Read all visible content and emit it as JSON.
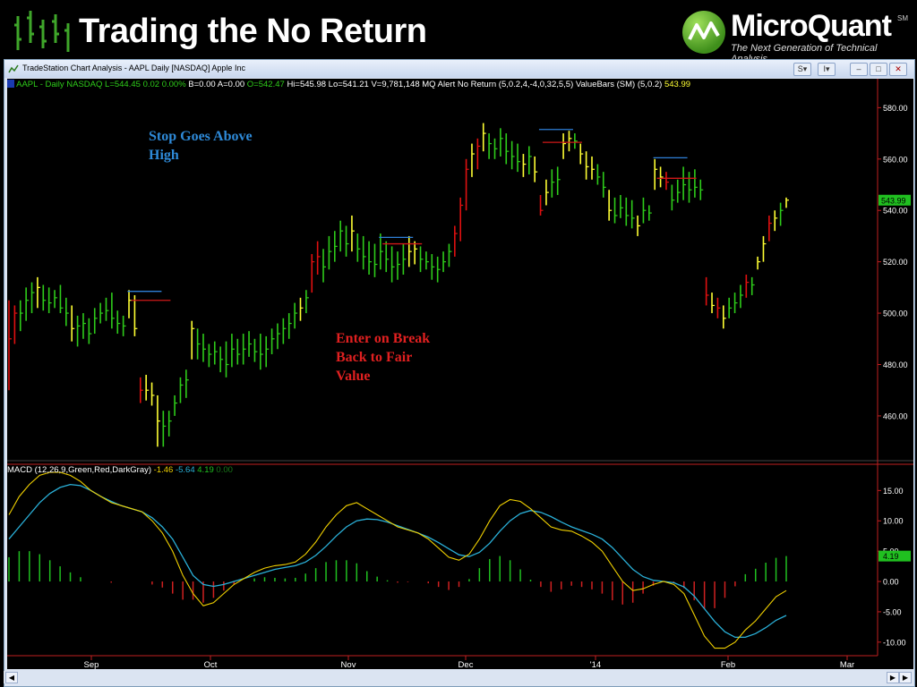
{
  "slide": {
    "title": "Trading the No Return"
  },
  "logo": {
    "brand_a": "Micro",
    "brand_b": "Quant",
    "sm": "SM",
    "tagline": "The Next Generation of Technical Analysis"
  },
  "window": {
    "title": "TradeStation Chart Analysis - AAPL Daily [NASDAQ] Apple Inc",
    "btn_s": "S",
    "btn_i": "I"
  },
  "status": {
    "symbol": "AAPL - Daily  NASDAQ",
    "last": "L=544.45",
    "change": "0.02",
    "pct": "0.00%",
    "bid": "B=0.00",
    "ask": "A=0.00",
    "open": "O=542.47",
    "hi": "Hi=545.98",
    "lo": "Lo=541.21",
    "vol": "V=9,781,148",
    "study1": "MQ Alert No Return (5,0.2,4,-4,0,32,5,5)",
    "study2": "ValueBars (SM) (5,0.2)",
    "study2_val": "543.99"
  },
  "macd_status": {
    "label": "MACD (12,26,9,Green,Red,DarkGray)",
    "v1": "-1.46",
    "v2": "-5.64",
    "v3": "4.19",
    "v4": "0.00"
  },
  "annotations": {
    "stop_line1": "Stop Goes Above",
    "stop_line2": "High",
    "enter_line1": "Enter on Break",
    "enter_line2": "Back to Fair",
    "enter_line3": "Value"
  },
  "colors": {
    "up_bar": "#2ecc1a",
    "down_bar": "#ffff33",
    "extreme_bar": "#e01010",
    "stop_line": "#2e7fd8",
    "entry_line": "#d01818",
    "macd_line": "#f0d000",
    "signal_line": "#2ab0d8",
    "hist_pos": "#20c020",
    "hist_neg": "#d02020",
    "annot_blue": "#2e8ad8",
    "annot_red": "#e02020"
  },
  "chart_data": [
    {
      "type": "bar",
      "name": "AAPL Daily OHLC (price)",
      "ylim": [
        445,
        585
      ],
      "yticks": [
        "580.00",
        "560.00",
        "540.00",
        "520.00",
        "500.00",
        "480.00",
        "460.00"
      ],
      "ytick_values": [
        580,
        560,
        540,
        520,
        500,
        480,
        460
      ],
      "last_price_label": "543.99",
      "last_price": 543.99,
      "xticks": [
        "Sep",
        "Oct",
        "Nov",
        "Dec",
        "'14",
        "Feb",
        "Mar"
      ],
      "bars": [
        {
          "h": 505,
          "l": 470,
          "c": 490,
          "k": "r"
        },
        {
          "h": 503,
          "l": 488,
          "c": 500,
          "k": "r"
        },
        {
          "h": 505,
          "l": 493,
          "c": 500,
          "k": "g"
        },
        {
          "h": 510,
          "l": 497,
          "c": 505,
          "k": "g"
        },
        {
          "h": 512,
          "l": 500,
          "c": 508,
          "k": "g"
        },
        {
          "h": 514,
          "l": 502,
          "c": 510,
          "k": "y"
        },
        {
          "h": 511,
          "l": 501,
          "c": 505,
          "k": "g"
        },
        {
          "h": 510,
          "l": 500,
          "c": 504,
          "k": "g"
        },
        {
          "h": 509,
          "l": 502,
          "c": 506,
          "k": "g"
        },
        {
          "h": 511,
          "l": 500,
          "c": 502,
          "k": "g"
        },
        {
          "h": 506,
          "l": 495,
          "c": 500,
          "k": "g"
        },
        {
          "h": 503,
          "l": 489,
          "c": 494,
          "k": "y"
        },
        {
          "h": 499,
          "l": 487,
          "c": 495,
          "k": "g"
        },
        {
          "h": 500,
          "l": 490,
          "c": 496,
          "k": "g"
        },
        {
          "h": 498,
          "l": 488,
          "c": 492,
          "k": "g"
        },
        {
          "h": 502,
          "l": 492,
          "c": 498,
          "k": "g"
        },
        {
          "h": 504,
          "l": 496,
          "c": 500,
          "k": "g"
        },
        {
          "h": 506,
          "l": 497,
          "c": 501,
          "k": "g"
        },
        {
          "h": 508,
          "l": 494,
          "c": 498,
          "k": "g"
        },
        {
          "h": 501,
          "l": 492,
          "c": 496,
          "k": "g"
        },
        {
          "h": 499,
          "l": 491,
          "c": 495,
          "k": "g"
        },
        {
          "h": 509,
          "l": 498,
          "c": 505,
          "k": "y"
        },
        {
          "h": 507,
          "l": 491,
          "c": 494,
          "k": "y"
        },
        {
          "h": 475,
          "l": 465,
          "c": 470,
          "k": "r"
        },
        {
          "h": 476,
          "l": 466,
          "c": 470,
          "k": "y"
        },
        {
          "h": 473,
          "l": 464,
          "c": 468,
          "k": "y"
        },
        {
          "h": 468,
          "l": 448,
          "c": 458,
          "k": "y"
        },
        {
          "h": 462,
          "l": 448,
          "c": 456,
          "k": "g"
        },
        {
          "h": 462,
          "l": 452,
          "c": 458,
          "k": "g"
        },
        {
          "h": 468,
          "l": 460,
          "c": 465,
          "k": "g"
        },
        {
          "h": 475,
          "l": 465,
          "c": 472,
          "k": "g"
        },
        {
          "h": 478,
          "l": 467,
          "c": 474,
          "k": "g"
        },
        {
          "h": 497,
          "l": 482,
          "c": 494,
          "k": "y"
        },
        {
          "h": 494,
          "l": 482,
          "c": 488,
          "k": "g"
        },
        {
          "h": 492,
          "l": 481,
          "c": 486,
          "k": "g"
        },
        {
          "h": 488,
          "l": 479,
          "c": 484,
          "k": "g"
        },
        {
          "h": 489,
          "l": 480,
          "c": 485,
          "k": "g"
        },
        {
          "h": 487,
          "l": 477,
          "c": 482,
          "k": "g"
        },
        {
          "h": 489,
          "l": 475,
          "c": 480,
          "k": "g"
        },
        {
          "h": 492,
          "l": 479,
          "c": 486,
          "k": "g"
        },
        {
          "h": 490,
          "l": 480,
          "c": 484,
          "k": "g"
        },
        {
          "h": 492,
          "l": 480,
          "c": 486,
          "k": "g"
        },
        {
          "h": 493,
          "l": 483,
          "c": 488,
          "k": "g"
        },
        {
          "h": 490,
          "l": 481,
          "c": 485,
          "k": "g"
        },
        {
          "h": 492,
          "l": 478,
          "c": 484,
          "k": "g"
        },
        {
          "h": 491,
          "l": 479,
          "c": 486,
          "k": "g"
        },
        {
          "h": 494,
          "l": 484,
          "c": 490,
          "k": "g"
        },
        {
          "h": 496,
          "l": 486,
          "c": 492,
          "k": "g"
        },
        {
          "h": 498,
          "l": 488,
          "c": 494,
          "k": "g"
        },
        {
          "h": 500,
          "l": 490,
          "c": 496,
          "k": "g"
        },
        {
          "h": 504,
          "l": 494,
          "c": 500,
          "k": "g"
        },
        {
          "h": 506,
          "l": 497,
          "c": 502,
          "k": "y"
        },
        {
          "h": 509,
          "l": 500,
          "c": 506,
          "k": "g"
        },
        {
          "h": 523,
          "l": 508,
          "c": 520,
          "k": "r"
        },
        {
          "h": 528,
          "l": 515,
          "c": 522,
          "k": "r"
        },
        {
          "h": 525,
          "l": 512,
          "c": 518,
          "k": "g"
        },
        {
          "h": 530,
          "l": 517,
          "c": 524,
          "k": "g"
        },
        {
          "h": 532,
          "l": 520,
          "c": 526,
          "k": "g"
        },
        {
          "h": 536,
          "l": 524,
          "c": 532,
          "k": "g"
        },
        {
          "h": 534,
          "l": 522,
          "c": 527,
          "k": "g"
        },
        {
          "h": 538,
          "l": 524,
          "c": 532,
          "k": "y"
        },
        {
          "h": 531,
          "l": 520,
          "c": 525,
          "k": "g"
        },
        {
          "h": 530,
          "l": 517,
          "c": 522,
          "k": "g"
        },
        {
          "h": 528,
          "l": 515,
          "c": 520,
          "k": "g"
        },
        {
          "h": 527,
          "l": 514,
          "c": 519,
          "k": "g"
        },
        {
          "h": 531,
          "l": 517,
          "c": 524,
          "k": "g"
        },
        {
          "h": 528,
          "l": 516,
          "c": 521,
          "k": "g"
        },
        {
          "h": 526,
          "l": 512,
          "c": 518,
          "k": "g"
        },
        {
          "h": 524,
          "l": 513,
          "c": 519,
          "k": "g"
        },
        {
          "h": 527,
          "l": 515,
          "c": 521,
          "k": "g"
        },
        {
          "h": 530,
          "l": 518,
          "c": 524,
          "k": "y"
        },
        {
          "h": 528,
          "l": 519,
          "c": 525,
          "k": "y"
        },
        {
          "h": 526,
          "l": 516,
          "c": 521,
          "k": "g"
        },
        {
          "h": 524,
          "l": 517,
          "c": 520,
          "k": "g"
        },
        {
          "h": 523,
          "l": 513,
          "c": 518,
          "k": "g"
        },
        {
          "h": 522,
          "l": 512,
          "c": 517,
          "k": "g"
        },
        {
          "h": 524,
          "l": 516,
          "c": 520,
          "k": "g"
        },
        {
          "h": 527,
          "l": 518,
          "c": 524,
          "k": "g"
        },
        {
          "h": 534,
          "l": 522,
          "c": 531,
          "k": "r"
        },
        {
          "h": 545,
          "l": 528,
          "c": 542,
          "k": "r"
        },
        {
          "h": 560,
          "l": 540,
          "c": 556,
          "k": "r"
        },
        {
          "h": 566,
          "l": 553,
          "c": 562,
          "k": "y"
        },
        {
          "h": 568,
          "l": 556,
          "c": 565,
          "k": "r"
        },
        {
          "h": 574,
          "l": 563,
          "c": 570,
          "k": "y"
        },
        {
          "h": 570,
          "l": 560,
          "c": 566,
          "k": "g"
        },
        {
          "h": 568,
          "l": 560,
          "c": 564,
          "k": "g"
        },
        {
          "h": 572,
          "l": 561,
          "c": 568,
          "k": "g"
        },
        {
          "h": 570,
          "l": 558,
          "c": 563,
          "k": "g"
        },
        {
          "h": 567,
          "l": 556,
          "c": 561,
          "k": "g"
        },
        {
          "h": 566,
          "l": 555,
          "c": 559,
          "k": "g"
        },
        {
          "h": 562,
          "l": 553,
          "c": 558,
          "k": "y"
        },
        {
          "h": 565,
          "l": 554,
          "c": 561,
          "k": "g"
        },
        {
          "h": 561,
          "l": 551,
          "c": 555,
          "k": "y"
        },
        {
          "h": 546,
          "l": 538,
          "c": 540,
          "k": "r"
        },
        {
          "h": 552,
          "l": 542,
          "c": 547,
          "k": "y"
        },
        {
          "h": 556,
          "l": 545,
          "c": 551,
          "k": "g"
        },
        {
          "h": 557,
          "l": 546,
          "c": 552,
          "k": "g"
        },
        {
          "h": 570,
          "l": 560,
          "c": 566,
          "k": "y"
        },
        {
          "h": 571,
          "l": 563,
          "c": 568,
          "k": "y"
        },
        {
          "h": 570,
          "l": 564,
          "c": 567,
          "k": "g"
        },
        {
          "h": 566,
          "l": 558,
          "c": 562,
          "k": "y"
        },
        {
          "h": 563,
          "l": 552,
          "c": 557,
          "k": "y"
        },
        {
          "h": 561,
          "l": 552,
          "c": 556,
          "k": "y"
        },
        {
          "h": 558,
          "l": 550,
          "c": 553,
          "k": "g"
        },
        {
          "h": 555,
          "l": 545,
          "c": 549,
          "k": "g"
        },
        {
          "h": 548,
          "l": 536,
          "c": 540,
          "k": "y"
        },
        {
          "h": 545,
          "l": 535,
          "c": 538,
          "k": "g"
        },
        {
          "h": 546,
          "l": 537,
          "c": 541,
          "k": "g"
        },
        {
          "h": 545,
          "l": 534,
          "c": 538,
          "k": "g"
        },
        {
          "h": 544,
          "l": 533,
          "c": 537,
          "k": "g"
        },
        {
          "h": 538,
          "l": 530,
          "c": 534,
          "k": "y"
        },
        {
          "h": 545,
          "l": 535,
          "c": 540,
          "k": "g"
        },
        {
          "h": 542,
          "l": 536,
          "c": 539,
          "k": "g"
        },
        {
          "h": 560,
          "l": 548,
          "c": 556,
          "k": "y"
        },
        {
          "h": 557,
          "l": 549,
          "c": 553,
          "k": "y"
        },
        {
          "h": 555,
          "l": 548,
          "c": 551,
          "k": "r"
        },
        {
          "h": 550,
          "l": 540,
          "c": 544,
          "k": "g"
        },
        {
          "h": 552,
          "l": 543,
          "c": 547,
          "k": "g"
        },
        {
          "h": 557,
          "l": 544,
          "c": 550,
          "k": "g"
        },
        {
          "h": 555,
          "l": 543,
          "c": 548,
          "k": "g"
        },
        {
          "h": 556,
          "l": 545,
          "c": 549,
          "k": "g"
        },
        {
          "h": 552,
          "l": 544,
          "c": 548,
          "k": "g"
        },
        {
          "h": 514,
          "l": 503,
          "c": 507,
          "k": "r"
        },
        {
          "h": 508,
          "l": 500,
          "c": 503,
          "k": "y"
        },
        {
          "h": 506,
          "l": 498,
          "c": 502,
          "k": "r"
        },
        {
          "h": 503,
          "l": 494,
          "c": 498,
          "k": "y"
        },
        {
          "h": 506,
          "l": 498,
          "c": 502,
          "k": "g"
        },
        {
          "h": 508,
          "l": 500,
          "c": 504,
          "k": "g"
        },
        {
          "h": 511,
          "l": 502,
          "c": 507,
          "k": "g"
        },
        {
          "h": 515,
          "l": 506,
          "c": 512,
          "k": "r"
        },
        {
          "h": 514,
          "l": 507,
          "c": 511,
          "k": "g"
        },
        {
          "h": 522,
          "l": 517,
          "c": 520,
          "k": "y"
        },
        {
          "h": 530,
          "l": 520,
          "c": 527,
          "k": "y"
        },
        {
          "h": 538,
          "l": 528,
          "c": 535,
          "k": "r"
        },
        {
          "h": 540,
          "l": 532,
          "c": 537,
          "k": "y"
        },
        {
          "h": 543,
          "l": 534,
          "c": 540,
          "k": "g"
        },
        {
          "h": 545,
          "l": 541,
          "c": 544,
          "k": "y"
        }
      ],
      "stop_levels": [
        {
          "bar": 22,
          "stop": 508.5,
          "entry": 505
        },
        {
          "bar": 66,
          "stop": 529.5,
          "entry": 527
        },
        {
          "bar": 94,
          "stop": 571.5,
          "entry": 566.5
        },
        {
          "bar": 114,
          "stop": 560.5,
          "entry": 552.5
        }
      ]
    },
    {
      "type": "line",
      "name": "MACD (12,26,9)",
      "ylim": [
        -11.5,
        18
      ],
      "yticks": [
        "15.00",
        "10.00",
        "5.00",
        "0.00",
        "-5.00",
        "-10.00"
      ],
      "ytick_values": [
        15,
        10,
        5,
        0,
        -5,
        -10
      ],
      "last_value_label": "4.19",
      "last_value": 4.19,
      "macd": [
        11,
        14,
        16,
        17.5,
        18,
        18,
        17.5,
        16.5,
        15,
        14,
        13,
        12.5,
        12,
        11.5,
        10,
        8,
        5,
        1,
        -2,
        -4,
        -3.5,
        -2,
        -0.5,
        0.5,
        1.5,
        2.2,
        2.6,
        2.8,
        3.2,
        4.5,
        6.5,
        9,
        11,
        12.5,
        13,
        12,
        11,
        10,
        9,
        8.5,
        8,
        7,
        5.5,
        4,
        3.5,
        4.5,
        7,
        10,
        12.5,
        13.5,
        13.2,
        12,
        10.5,
        9,
        8.5,
        8.3,
        7.5,
        6.5,
        5,
        2.5,
        0,
        -1.5,
        -1.2,
        -0.5,
        0,
        -0.5,
        -2,
        -5.5,
        -9,
        -11,
        -11,
        -10,
        -8,
        -6.5,
        -4.5,
        -2.5,
        -1.5
      ],
      "signal": [
        7,
        9,
        11,
        13,
        14.5,
        15.5,
        16,
        15.8,
        15,
        14,
        13.2,
        12.5,
        12,
        11.5,
        10.5,
        9,
        7,
        4,
        1,
        -0.5,
        -0.8,
        -0.5,
        0,
        0.5,
        1,
        1.5,
        2,
        2.3,
        2.6,
        3.2,
        4.3,
        5.8,
        7.5,
        9,
        10,
        10.3,
        10.2,
        9.8,
        9.2,
        8.6,
        8,
        7.3,
        6.4,
        5.4,
        4.4,
        4.1,
        4.8,
        6.3,
        8.3,
        10,
        11.2,
        11.7,
        11.4,
        10.7,
        9.8,
        9,
        8.4,
        7.8,
        7,
        5.6,
        3.8,
        2,
        0.8,
        0.2,
        0,
        -0.2,
        -0.9,
        -2.4,
        -4.5,
        -6.6,
        -8.3,
        -9.2,
        -9.2,
        -8.6,
        -7.6,
        -6.4,
        -5.6
      ],
      "histogram": [
        4,
        5,
        5,
        4.5,
        3.5,
        2.5,
        1.5,
        0.7,
        0,
        0,
        -0.2,
        0,
        0,
        0,
        -0.5,
        -1,
        -2,
        -3,
        -3,
        -3.5,
        -2.7,
        -1.5,
        -0.5,
        0,
        0.5,
        0.7,
        0.6,
        0.5,
        0.6,
        1.3,
        2.2,
        3.2,
        3.5,
        3.5,
        3,
        1.7,
        0.8,
        0.2,
        -0.2,
        -0.1,
        0,
        -0.3,
        -0.9,
        -1.4,
        -0.9,
        0.4,
        2.2,
        3.7,
        4.2,
        3.5,
        2,
        0.3,
        -0.9,
        -1.7,
        -1.3,
        -0.7,
        -0.9,
        -1.3,
        -2,
        -3.1,
        -3.8,
        -3.5,
        -2,
        -0.7,
        0,
        -0.3,
        -1.1,
        -3.1,
        -4.5,
        -4.4,
        -2.7,
        -0.8,
        1.2,
        2.1,
        3.1,
        3.9,
        4.19
      ]
    }
  ]
}
